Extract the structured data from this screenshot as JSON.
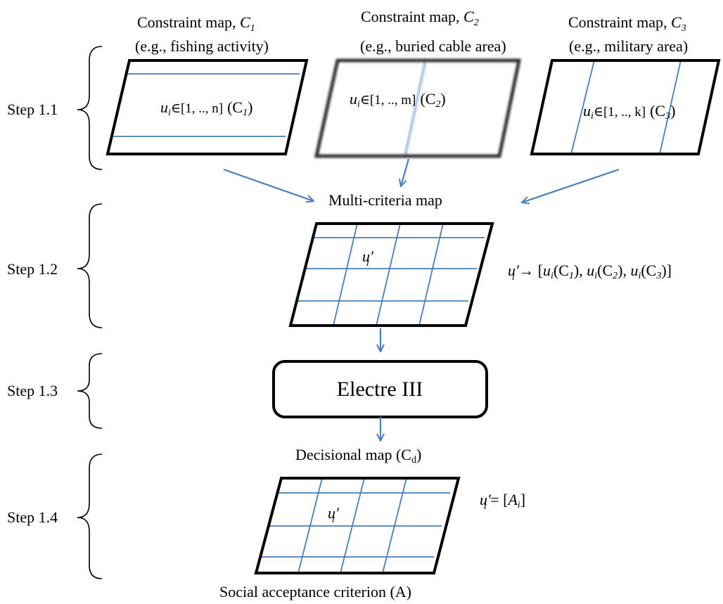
{
  "constraint_maps": [
    {
      "title": "Constraint map, ",
      "sym": "C",
      "sub": "1",
      "example": "(e.g., fishing activity)",
      "cell_range": "∈[1, .., n]",
      "cell_var": "u",
      "cell_var_sub": "i",
      "cell_ref": "(C",
      "cell_ref_sub": "1",
      "cell_ref_end": ")"
    },
    {
      "title": "Constraint map, ",
      "sym": "C",
      "sub": "2",
      "example": "(e.g., buried cable area)",
      "cell_range": "∈[1, .., m]",
      "cell_var": "u",
      "cell_var_sub": "i",
      "cell_ref": "(C",
      "cell_ref_sub": "2",
      "cell_ref_end": ")"
    },
    {
      "title": "Constraint map, ",
      "sym": "C",
      "sub": "3",
      "example": "(e.g., military area)",
      "cell_range": "∈[1, .., k]",
      "cell_var": "u",
      "cell_var_sub": "i",
      "cell_ref": "(C",
      "cell_ref_sub": "3",
      "cell_ref_end": ")"
    }
  ],
  "steps": [
    "Step 1.1",
    "Step 1.2",
    "Step 1.3",
    "Step 1.4"
  ],
  "multi_criteria_label": "Multi-criteria map",
  "cell_symbol": "u′",
  "cell_symbol_sub": "i",
  "mapping_formula": {
    "lhs": "u′",
    "lhs_sub": "i",
    "arrow": " → [",
    "parts": [
      {
        "v": "u",
        "vs": "i",
        "c": "(C",
        "cs": "1",
        "end": "), "
      },
      {
        "v": "u",
        "vs": "i",
        "c": "(C",
        "cs": "2",
        "end": "), "
      },
      {
        "v": "u",
        "vs": "i",
        "c": "(C",
        "cs": "3",
        "end": ")]"
      }
    ]
  },
  "method_box": "Electre III",
  "decisional_label": "Decisional map (C",
  "decisional_sub": "d",
  "decisional_end": ")",
  "acceptance_formula": {
    "lhs": "u′",
    "lhs_sub": "i",
    "eq": " = [",
    "v": "A",
    "vs": "i",
    "end": "]"
  },
  "acceptance_label": "Social acceptance criterion (A)",
  "colors": {
    "grid": "#4a7ebb",
    "arrow": "#4a7ebb",
    "frame": "#000000"
  }
}
